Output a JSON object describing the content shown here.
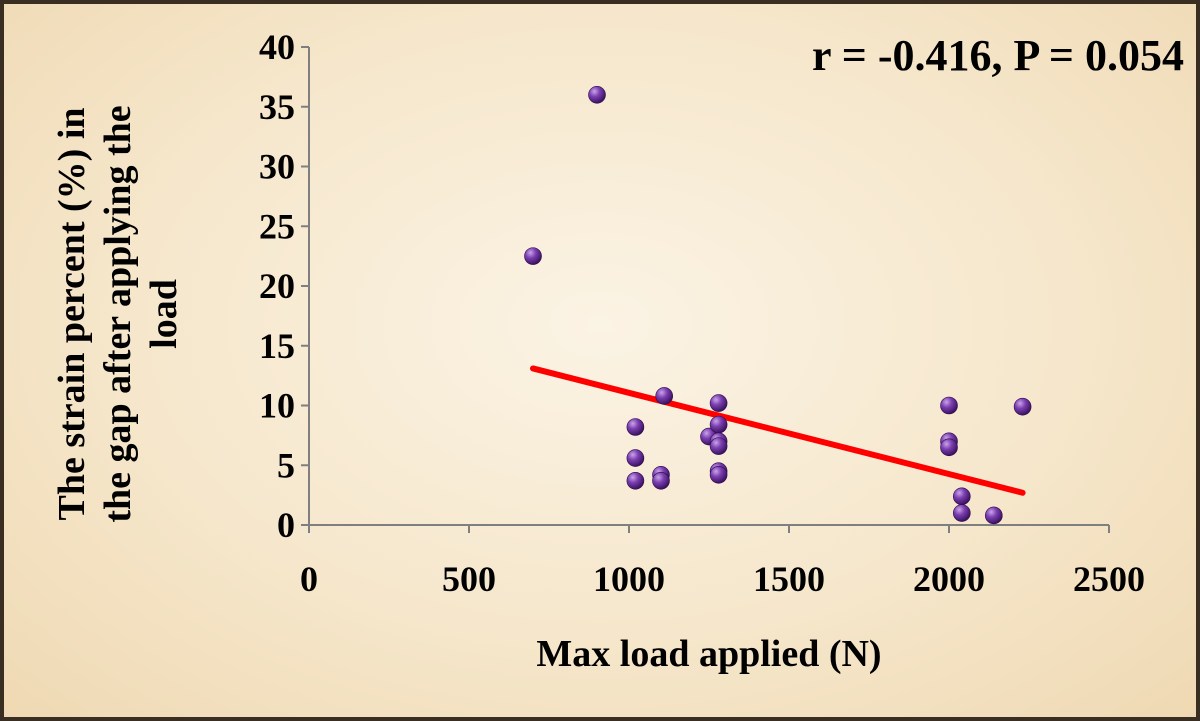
{
  "chart_data": {
    "type": "scatter",
    "title": "",
    "annotation": "r = -0.416, P = 0.054",
    "xlabel": "Max load applied (N)",
    "ylabel_lines": [
      "The strain percent (%) in",
      "the gap after applying the",
      "load"
    ],
    "xlim": [
      0,
      2500
    ],
    "ylim": [
      0,
      40
    ],
    "x_ticks": [
      "0",
      "500",
      "1000",
      "1500",
      "2000",
      "2500"
    ],
    "y_ticks": [
      "0",
      "5",
      "10",
      "15",
      "20",
      "25",
      "30",
      "35",
      "40"
    ],
    "grid": false,
    "points": [
      {
        "x": 700,
        "y": 22.5
      },
      {
        "x": 900,
        "y": 36.0
      },
      {
        "x": 1020,
        "y": 8.2
      },
      {
        "x": 1020,
        "y": 5.6
      },
      {
        "x": 1020,
        "y": 3.7
      },
      {
        "x": 1100,
        "y": 4.2
      },
      {
        "x": 1100,
        "y": 3.7
      },
      {
        "x": 1110,
        "y": 10.8
      },
      {
        "x": 1250,
        "y": 7.4
      },
      {
        "x": 1280,
        "y": 10.2
      },
      {
        "x": 1280,
        "y": 8.4
      },
      {
        "x": 1280,
        "y": 7.0
      },
      {
        "x": 1280,
        "y": 6.6
      },
      {
        "x": 1280,
        "y": 4.5
      },
      {
        "x": 1280,
        "y": 4.2
      },
      {
        "x": 2000,
        "y": 10.0
      },
      {
        "x": 2000,
        "y": 7.0
      },
      {
        "x": 2000,
        "y": 6.5
      },
      {
        "x": 2040,
        "y": 2.4
      },
      {
        "x": 2040,
        "y": 1.0
      },
      {
        "x": 2140,
        "y": 0.8
      },
      {
        "x": 2230,
        "y": 9.9
      }
    ],
    "trendline": {
      "x": [
        700,
        2230
      ],
      "y": [
        13.1,
        2.7
      ]
    },
    "colors": {
      "point": "#6a2f96",
      "trendline": "#ff0000",
      "axis": "#7f7f7f"
    }
  }
}
